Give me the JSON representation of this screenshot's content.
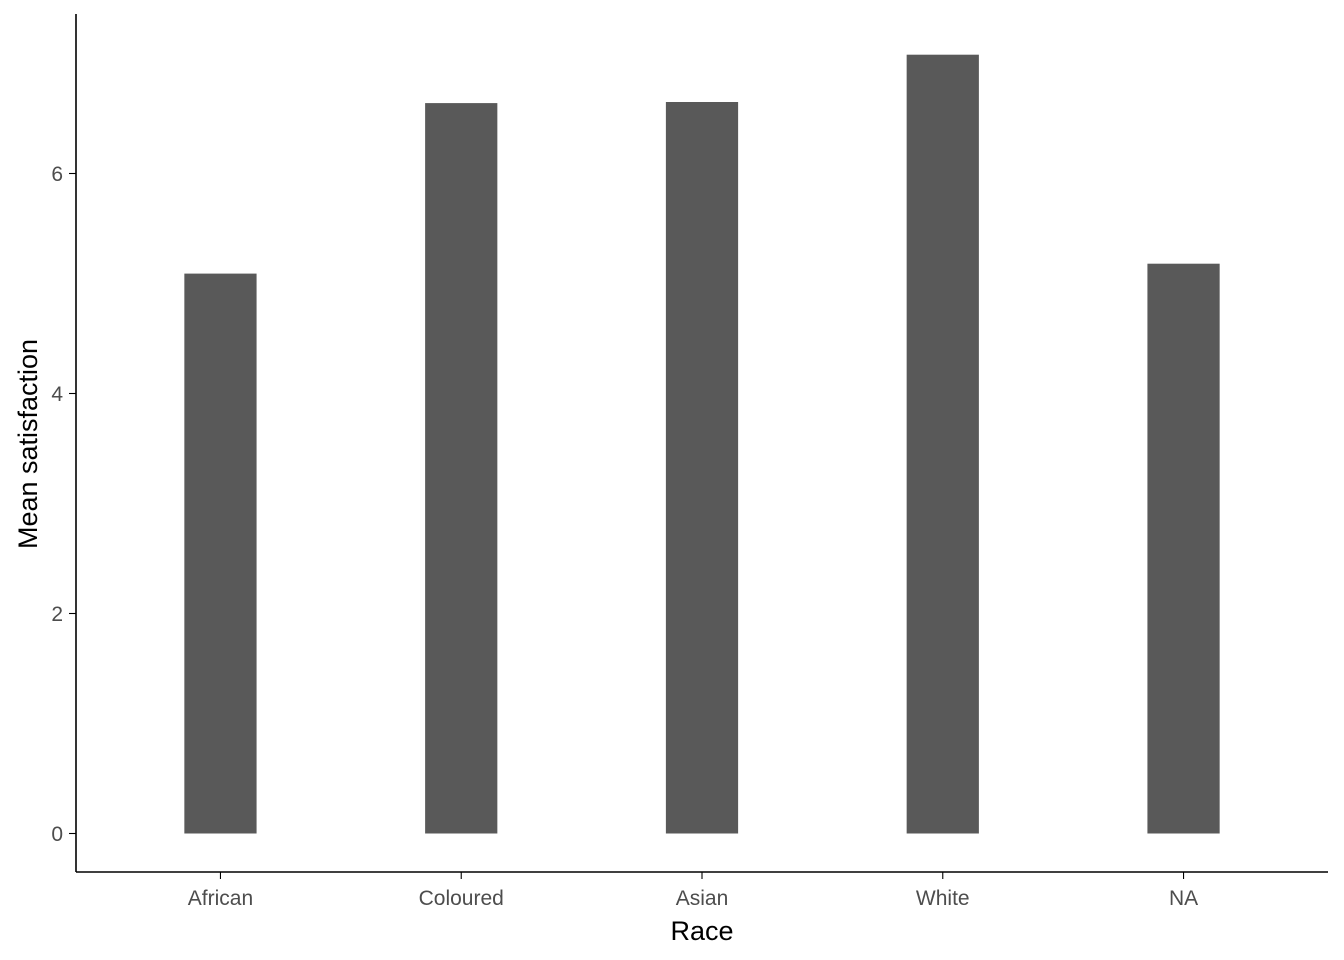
{
  "chart_data": {
    "type": "bar",
    "categories": [
      "African",
      "Coloured",
      "Asian",
      "White",
      "NA"
    ],
    "values": [
      5.09,
      6.64,
      6.65,
      7.08,
      5.18
    ],
    "xlabel": "Race",
    "ylabel": "Mean satisfaction",
    "ylim": [
      -0.35,
      7.45
    ],
    "yticks": [
      0,
      2,
      4,
      6
    ],
    "grid": false,
    "legend": "none",
    "bar_color": "#595959",
    "axis_color": "#000000",
    "tick_label_color": "#4d4d4d"
  }
}
